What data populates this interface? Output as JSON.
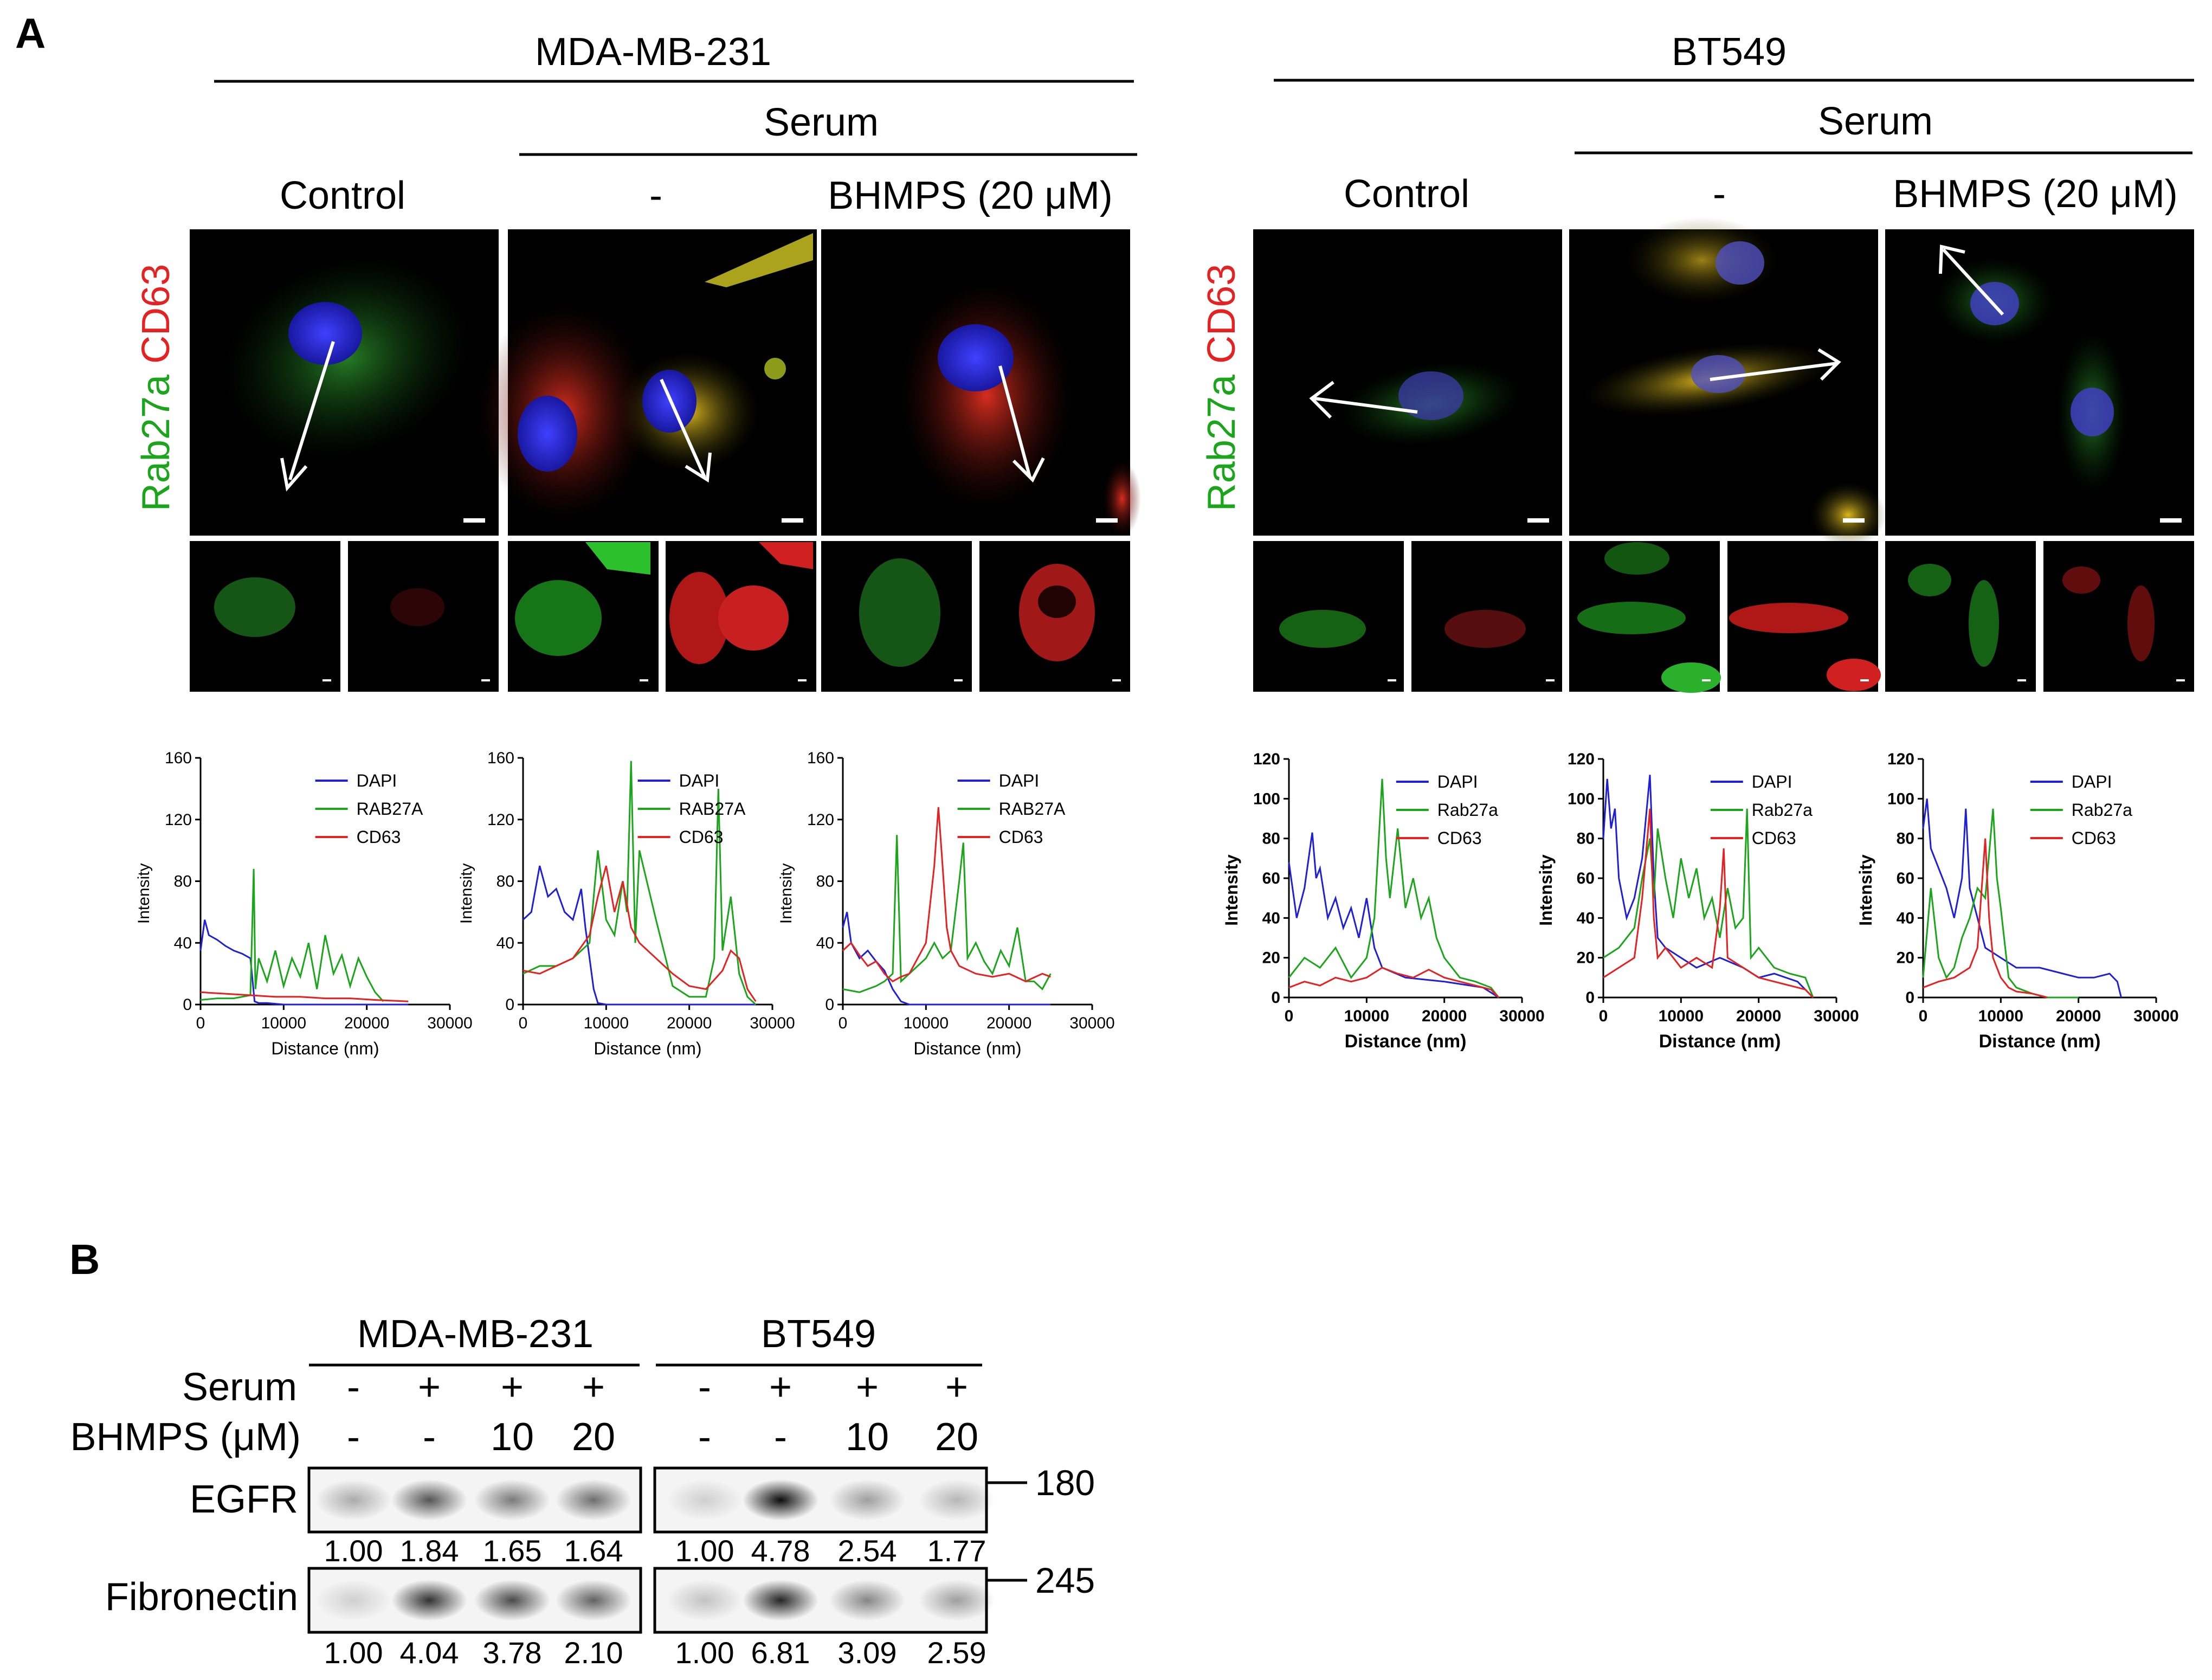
{
  "panel_a": {
    "label": "A",
    "groups": [
      {
        "cell_line": "MDA-MB-231",
        "serum_label": "Serum",
        "conditions": [
          "Control",
          "-",
          "BHMPS (20 μM)"
        ],
        "stain_label": {
          "green": "Rab27a",
          "red": "CD63"
        },
        "profile_chart": {
          "type": "line",
          "xlabel": "Distance (nm)",
          "ylabel": "Intensity",
          "xlim": [
            0,
            30000
          ],
          "ylim": [
            0,
            160
          ],
          "xticks": [
            "0",
            "10000",
            "20000",
            "30000"
          ],
          "yticks": [
            "0",
            "40",
            "80",
            "120",
            "160"
          ],
          "legend_labels": [
            "DAPI",
            "RAB27A",
            "CD63"
          ]
        }
      },
      {
        "cell_line": "BT549",
        "serum_label": "Serum",
        "conditions": [
          "Control",
          "-",
          "BHMPS (20 μM)"
        ],
        "stain_label": {
          "green": "Rab27a",
          "red": "CD63"
        },
        "profile_chart": {
          "type": "line",
          "xlabel": "Distance (nm)",
          "ylabel": "Intensity",
          "xlim": [
            0,
            30000
          ],
          "ylim": [
            0,
            120
          ],
          "xticks": [
            "0",
            "10000",
            "20000",
            "30000"
          ],
          "yticks": [
            "0",
            "20",
            "40",
            "60",
            "80",
            "100",
            "120"
          ],
          "legend_labels": [
            "DAPI",
            "Rab27a",
            "CD63"
          ]
        }
      }
    ],
    "colors": {
      "dapi": "#1f1fd8",
      "rab27a": "#1aa51a",
      "cd63": "#e52121"
    }
  },
  "chart_data": [
    {
      "type": "line",
      "group": "MDA-MB-231",
      "condition": "Control",
      "series": [
        {
          "name": "DAPI",
          "x": [
            0,
            500,
            1000,
            2000,
            3000,
            4000,
            5000,
            6000,
            6500,
            7000,
            8000,
            10000,
            15000,
            20000,
            25000
          ],
          "y": [
            35,
            55,
            45,
            42,
            38,
            35,
            33,
            30,
            2,
            1,
            1,
            0,
            0,
            0,
            0
          ]
        },
        {
          "name": "RAB27A",
          "x": [
            0,
            2000,
            4000,
            6000,
            6400,
            6600,
            7000,
            8000,
            9000,
            10000,
            11000,
            12000,
            13000,
            14000,
            15000,
            16000,
            17000,
            18000,
            19000,
            20000,
            21000,
            22000
          ],
          "y": [
            3,
            4,
            4,
            6,
            88,
            10,
            30,
            15,
            35,
            12,
            30,
            18,
            40,
            10,
            45,
            20,
            32,
            12,
            30,
            18,
            8,
            2
          ]
        },
        {
          "name": "CD63",
          "x": [
            0,
            3000,
            6000,
            9000,
            12000,
            15000,
            18000,
            21000,
            25000
          ],
          "y": [
            8,
            7,
            6,
            5,
            5,
            4,
            4,
            3,
            2
          ]
        }
      ]
    },
    {
      "type": "line",
      "group": "MDA-MB-231",
      "condition": "-",
      "series": [
        {
          "name": "DAPI",
          "x": [
            0,
            1000,
            2000,
            3000,
            4000,
            5000,
            6000,
            7000,
            7500,
            8000,
            8500,
            9000,
            10000,
            15000,
            20000,
            25000,
            28000
          ],
          "y": [
            55,
            60,
            90,
            70,
            75,
            60,
            55,
            75,
            50,
            30,
            10,
            1,
            0,
            0,
            0,
            0,
            0
          ]
        },
        {
          "name": "RAB27A",
          "x": [
            0,
            2000,
            4000,
            6000,
            8000,
            9000,
            10000,
            11000,
            12000,
            12500,
            13000,
            13500,
            14000,
            16000,
            18000,
            20000,
            22000,
            23000,
            23500,
            24000,
            25000,
            26000,
            27000,
            28000
          ],
          "y": [
            20,
            25,
            25,
            30,
            40,
            100,
            55,
            45,
            80,
            60,
            158,
            40,
            100,
            55,
            12,
            5,
            5,
            30,
            140,
            35,
            70,
            20,
            5,
            0
          ]
        },
        {
          "name": "CD63",
          "x": [
            0,
            2000,
            4000,
            6000,
            8000,
            9000,
            10000,
            11000,
            12000,
            13000,
            14000,
            16000,
            18000,
            20000,
            22000,
            24000,
            25000,
            26000,
            27000,
            28000
          ],
          "y": [
            22,
            20,
            25,
            30,
            45,
            70,
            90,
            60,
            80,
            50,
            40,
            30,
            20,
            12,
            10,
            22,
            35,
            30,
            10,
            2
          ]
        }
      ]
    },
    {
      "type": "line",
      "group": "MDA-MB-231",
      "condition": "BHMPS (20 μM)",
      "series": [
        {
          "name": "DAPI",
          "x": [
            0,
            500,
            1000,
            2000,
            3000,
            4000,
            5000,
            6000,
            7000,
            8000,
            10000,
            15000,
            20000,
            25000
          ],
          "y": [
            50,
            60,
            40,
            30,
            35,
            28,
            22,
            10,
            2,
            0,
            0,
            0,
            0,
            0
          ]
        },
        {
          "name": "RAB27A",
          "x": [
            0,
            2000,
            4000,
            5000,
            6000,
            6500,
            7000,
            8000,
            9000,
            10000,
            11000,
            12000,
            13000,
            14000,
            14500,
            15000,
            16000,
            17000,
            18000,
            19000,
            20000,
            21000,
            22000,
            23000,
            24000,
            25000
          ],
          "y": [
            10,
            8,
            12,
            15,
            20,
            110,
            15,
            20,
            25,
            30,
            40,
            30,
            35,
            80,
            105,
            30,
            40,
            28,
            20,
            35,
            25,
            50,
            15,
            15,
            10,
            20
          ]
        },
        {
          "name": "CD63",
          "x": [
            0,
            1000,
            2000,
            3000,
            4000,
            5000,
            6000,
            7000,
            8000,
            9000,
            10000,
            11000,
            11500,
            12000,
            12500,
            13000,
            14000,
            16000,
            18000,
            20000,
            22000,
            24000,
            25000
          ],
          "y": [
            35,
            40,
            32,
            25,
            28,
            20,
            15,
            18,
            20,
            30,
            40,
            90,
            128,
            90,
            50,
            35,
            25,
            20,
            18,
            20,
            15,
            20,
            18
          ]
        }
      ]
    },
    {
      "type": "line",
      "group": "BT549",
      "condition": "Control",
      "series": [
        {
          "name": "DAPI",
          "x": [
            0,
            1000,
            2000,
            3000,
            3500,
            4000,
            5000,
            6000,
            7000,
            8000,
            9000,
            10000,
            11000,
            12000,
            15000,
            20000,
            25000,
            27000
          ],
          "y": [
            68,
            40,
            55,
            83,
            60,
            65,
            40,
            50,
            35,
            45,
            30,
            50,
            25,
            15,
            10,
            8,
            5,
            0
          ]
        },
        {
          "name": "Rab27a",
          "x": [
            0,
            2000,
            4000,
            6000,
            8000,
            10000,
            11000,
            12000,
            12500,
            13000,
            14000,
            15000,
            16000,
            17000,
            18000,
            19000,
            20000,
            22000,
            24000,
            26000,
            27000
          ],
          "y": [
            10,
            20,
            15,
            25,
            10,
            20,
            40,
            110,
            70,
            50,
            85,
            45,
            60,
            40,
            50,
            30,
            20,
            10,
            8,
            5,
            0
          ]
        },
        {
          "name": "CD63",
          "x": [
            0,
            2000,
            4000,
            6000,
            8000,
            10000,
            12000,
            14000,
            16000,
            18000,
            20000,
            22000,
            24000,
            26000,
            27000
          ],
          "y": [
            5,
            8,
            6,
            10,
            8,
            10,
            15,
            12,
            10,
            14,
            10,
            8,
            6,
            4,
            0
          ]
        }
      ]
    },
    {
      "type": "line",
      "group": "BT549",
      "condition": "-",
      "series": [
        {
          "name": "DAPI",
          "x": [
            0,
            500,
            1000,
            1500,
            2000,
            3000,
            4000,
            5000,
            6000,
            6500,
            7000,
            8000,
            10000,
            12000,
            15000,
            18000,
            20000,
            22000,
            25000,
            27000
          ],
          "y": [
            80,
            110,
            85,
            95,
            60,
            40,
            50,
            70,
            112,
            60,
            30,
            25,
            20,
            15,
            20,
            15,
            10,
            12,
            8,
            0
          ]
        },
        {
          "name": "Rab27a",
          "x": [
            0,
            2000,
            4000,
            5000,
            6000,
            6500,
            7000,
            8000,
            9000,
            10000,
            11000,
            12000,
            13000,
            14000,
            15000,
            16000,
            17000,
            18000,
            18500,
            19000,
            20000,
            22000,
            24000,
            26000,
            27000
          ],
          "y": [
            20,
            25,
            35,
            60,
            80,
            50,
            85,
            60,
            40,
            70,
            50,
            65,
            40,
            50,
            30,
            55,
            35,
            40,
            95,
            20,
            25,
            15,
            12,
            10,
            0
          ]
        },
        {
          "name": "CD63",
          "x": [
            0,
            2000,
            4000,
            5000,
            6000,
            6500,
            7000,
            8000,
            10000,
            12000,
            14000,
            15000,
            15500,
            16000,
            18000,
            20000,
            22000,
            24000,
            26000,
            27000
          ],
          "y": [
            10,
            15,
            20,
            50,
            95,
            40,
            20,
            25,
            15,
            20,
            15,
            45,
            75,
            20,
            15,
            10,
            8,
            6,
            4,
            0
          ]
        }
      ]
    },
    {
      "type": "line",
      "group": "BT549",
      "condition": "BHMPS (20 μM)",
      "series": [
        {
          "name": "DAPI",
          "x": [
            0,
            500,
            1000,
            2000,
            3000,
            4000,
            5000,
            5500,
            6000,
            7000,
            8000,
            10000,
            12000,
            15000,
            18000,
            20000,
            22000,
            24000,
            25000,
            25500
          ],
          "y": [
            85,
            100,
            75,
            65,
            55,
            40,
            60,
            95,
            55,
            40,
            25,
            20,
            15,
            15,
            12,
            10,
            10,
            12,
            8,
            0
          ]
        },
        {
          "name": "Rab27a",
          "x": [
            0,
            1000,
            2000,
            3000,
            4000,
            5000,
            6000,
            7000,
            8000,
            9000,
            9500,
            10000,
            11000,
            12000,
            14000,
            16000,
            18000,
            20000
          ],
          "y": [
            10,
            55,
            20,
            10,
            15,
            30,
            40,
            55,
            50,
            95,
            60,
            45,
            10,
            5,
            2,
            0,
            0,
            0
          ]
        },
        {
          "name": "CD63",
          "x": [
            0,
            2000,
            4000,
            6000,
            7000,
            8000,
            8500,
            9000,
            10000,
            11000,
            12000,
            14000,
            16000
          ],
          "y": [
            5,
            8,
            10,
            15,
            25,
            80,
            40,
            20,
            10,
            5,
            3,
            2,
            0
          ]
        }
      ]
    }
  ],
  "panel_b": {
    "label": "B",
    "row_labels": {
      "serum": "Serum",
      "bhmps": "BHMPS (μM)"
    },
    "groups": [
      {
        "cell_line": "MDA-MB-231",
        "serum": [
          "-",
          "+",
          "+",
          "+"
        ],
        "bhmps": [
          "-",
          "-",
          "10",
          "20"
        ],
        "egfr_values": [
          "1.00",
          "1.84",
          "1.65",
          "1.64"
        ],
        "fn_values": [
          "1.00",
          "4.04",
          "3.78",
          "2.10"
        ]
      },
      {
        "cell_line": "BT549",
        "serum": [
          "-",
          "+",
          "+",
          "+"
        ],
        "bhmps": [
          "-",
          "-",
          "10",
          "20"
        ],
        "egfr_values": [
          "1.00",
          "4.78",
          "2.54",
          "1.77"
        ],
        "fn_values": [
          "1.00",
          "6.81",
          "3.09",
          "2.59"
        ]
      }
    ],
    "blots": [
      "EGFR",
      "Fibronectin"
    ],
    "markers": [
      "180",
      "245"
    ],
    "band_intensity": {
      "egfr": [
        [
          0.3,
          0.65,
          0.5,
          0.55
        ],
        [
          0.15,
          0.95,
          0.35,
          0.25
        ]
      ],
      "fibronectin": [
        [
          0.15,
          0.8,
          0.7,
          0.6
        ],
        [
          0.2,
          0.85,
          0.45,
          0.35
        ]
      ]
    }
  }
}
